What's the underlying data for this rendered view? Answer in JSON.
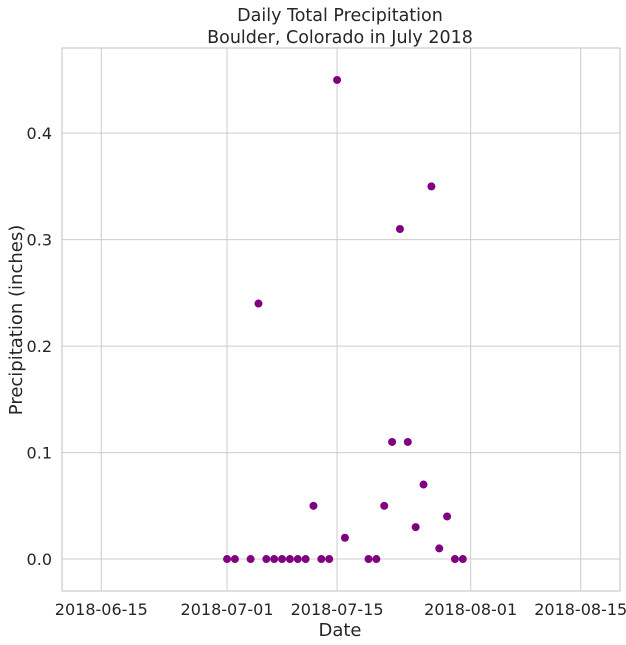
{
  "chart_data": {
    "type": "scatter",
    "title": "Daily Total Precipitation",
    "subtitle": "Boulder, Colorado in July 2018",
    "xlabel": "Date",
    "ylabel": "Precipitation (inches)",
    "xlim": [
      "2018-06-10",
      "2018-08-20"
    ],
    "ylim": [
      -0.03,
      0.48
    ],
    "x_ticks": [
      "2018-06-15",
      "2018-07-01",
      "2018-07-15",
      "2018-08-01",
      "2018-08-15"
    ],
    "y_ticks": [
      0.0,
      0.1,
      0.2,
      0.3,
      0.4
    ],
    "y_tick_labels": [
      "0.0",
      "0.1",
      "0.2",
      "0.3",
      "0.4"
    ],
    "grid": true,
    "marker_color": "#800080",
    "points": [
      {
        "x": "2018-07-01",
        "y": 0.0
      },
      {
        "x": "2018-07-02",
        "y": 0.0
      },
      {
        "x": "2018-07-04",
        "y": 0.0
      },
      {
        "x": "2018-07-05",
        "y": 0.24
      },
      {
        "x": "2018-07-06",
        "y": 0.0
      },
      {
        "x": "2018-07-07",
        "y": 0.0
      },
      {
        "x": "2018-07-08",
        "y": 0.0
      },
      {
        "x": "2018-07-09",
        "y": 0.0
      },
      {
        "x": "2018-07-10",
        "y": 0.0
      },
      {
        "x": "2018-07-11",
        "y": 0.0
      },
      {
        "x": "2018-07-12",
        "y": 0.05
      },
      {
        "x": "2018-07-13",
        "y": 0.0
      },
      {
        "x": "2018-07-14",
        "y": 0.0
      },
      {
        "x": "2018-07-15",
        "y": 0.45
      },
      {
        "x": "2018-07-16",
        "y": 0.02
      },
      {
        "x": "2018-07-19",
        "y": 0.0
      },
      {
        "x": "2018-07-20",
        "y": 0.0
      },
      {
        "x": "2018-07-21",
        "y": 0.05
      },
      {
        "x": "2018-07-22",
        "y": 0.11
      },
      {
        "x": "2018-07-23",
        "y": 0.31
      },
      {
        "x": "2018-07-24",
        "y": 0.11
      },
      {
        "x": "2018-07-25",
        "y": 0.03
      },
      {
        "x": "2018-07-26",
        "y": 0.07
      },
      {
        "x": "2018-07-27",
        "y": 0.35
      },
      {
        "x": "2018-07-28",
        "y": 0.01
      },
      {
        "x": "2018-07-29",
        "y": 0.04
      },
      {
        "x": "2018-07-30",
        "y": 0.0
      },
      {
        "x": "2018-07-31",
        "y": 0.0
      }
    ]
  }
}
